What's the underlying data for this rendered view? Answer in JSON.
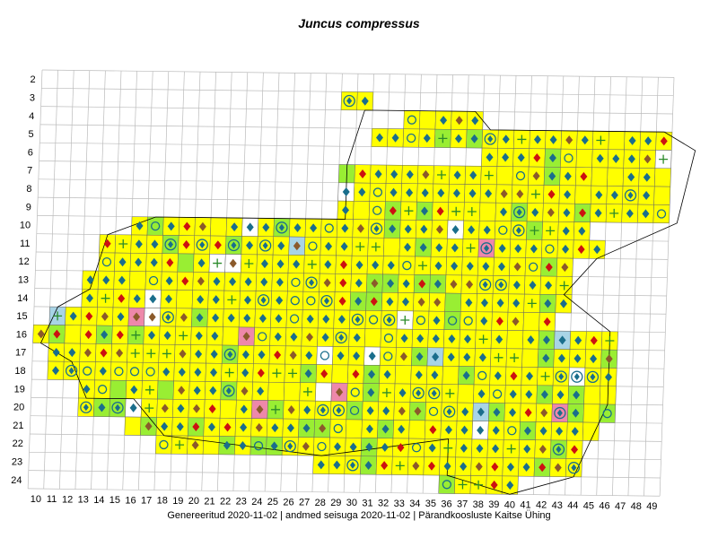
{
  "title": "Juncus compressus",
  "footer": "Genereeritud 2020-11-02  |  andmed seisuga 2020-11-02  |  Pärandkoosluste Kaitse Ühing",
  "grid": {
    "columns": [
      "10",
      "11",
      "12",
      "13",
      "14",
      "15",
      "16",
      "17",
      "18",
      "19",
      "20",
      "21",
      "22",
      "23",
      "24",
      "25",
      "26",
      "27",
      "28",
      "29",
      "30",
      "31",
      "32",
      "33",
      "34",
      "35",
      "36",
      "37",
      "38",
      "39",
      "40",
      "41",
      "42",
      "43",
      "44",
      "45",
      "46",
      "47",
      "48",
      "49"
    ],
    "rows": [
      "2",
      "3",
      "4",
      "5",
      "6",
      "7",
      "8",
      "9",
      "10",
      "11",
      "12",
      "13",
      "14",
      "15",
      "16",
      "17",
      "18",
      "19",
      "20",
      "21",
      "22",
      "23",
      "24"
    ]
  },
  "colors": {
    "present": "#ffff00",
    "green": "#99ee33",
    "lightblue": "#a8d4e6",
    "pink": "#ee88aa",
    "purple": "#8833dd",
    "diamond_blue": "#1a6e8c",
    "diamond_red": "#cc1111",
    "diamond_brown": "#8b5a2b",
    "circle_outline": "#1a6e8c",
    "circle_red": "#cc1111",
    "circle_yellow": "#cccc00",
    "grid_line": "#bbbbbb",
    "outline": "#000000"
  },
  "legend_note": ""
}
